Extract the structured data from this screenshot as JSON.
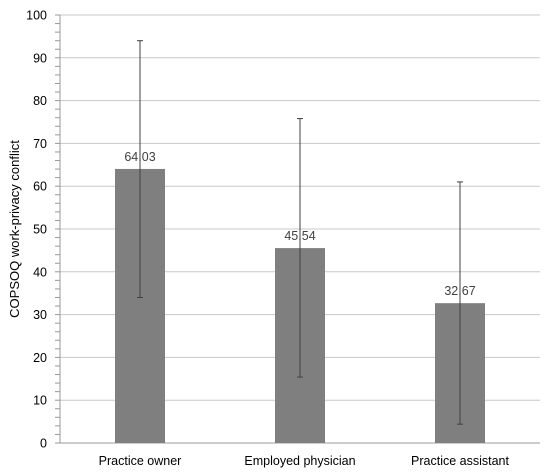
{
  "chart_data": {
    "type": "bar",
    "title": "",
    "xlabel": "",
    "ylabel": "COPSOQ work-privacy conflict",
    "categories": [
      "Practice owner",
      "Employed physician",
      "Practice assistant"
    ],
    "values": [
      64.03,
      45.54,
      32.67
    ],
    "value_labels": [
      "64.03",
      "45.54",
      "32.67"
    ],
    "error_upper": [
      94,
      75.8,
      61
    ],
    "error_lower": [
      34,
      15.4,
      4.4
    ],
    "ylim": [
      0,
      100
    ],
    "yticks": [
      "0",
      "10",
      "20",
      "30",
      "40",
      "50",
      "60",
      "70",
      "80",
      "90",
      "100"
    ],
    "grid": true,
    "legend": "none",
    "colors": {
      "bar": "#7f7f7f",
      "error_bar": "#404040",
      "grid": "#c8c8c8"
    }
  }
}
